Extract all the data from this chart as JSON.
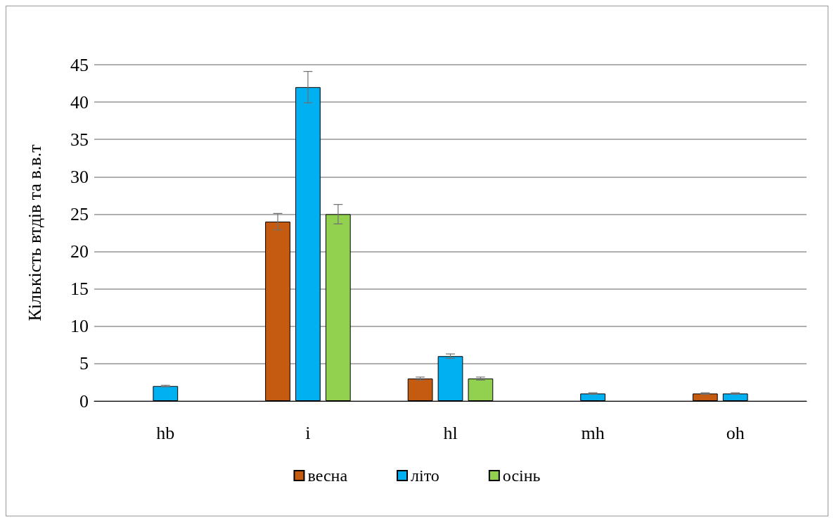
{
  "chart_data": {
    "type": "bar",
    "ylabel": "Кількість втдів та в.в.т",
    "categories": [
      "hb",
      "i",
      "hl",
      "mh",
      "oh"
    ],
    "series": [
      {
        "name": "весна",
        "color": "#c55a11",
        "values": [
          null,
          24,
          3,
          null,
          1
        ],
        "errors": [
          null,
          1.1,
          0.2,
          null,
          0.1
        ]
      },
      {
        "name": "літо",
        "color": "#00b0f0",
        "values": [
          2,
          42,
          6,
          1,
          1
        ],
        "errors": [
          0.1,
          2.1,
          0.3,
          0.1,
          0.1
        ]
      },
      {
        "name": "осінь",
        "color": "#92d050",
        "values": [
          null,
          25,
          3,
          null,
          null
        ],
        "errors": [
          null,
          1.3,
          0.2,
          null,
          null
        ]
      }
    ],
    "ylim": [
      0,
      45
    ],
    "yticks": [
      0,
      5,
      10,
      15,
      20,
      25,
      30,
      35,
      40,
      45
    ],
    "grid": "y",
    "legend": "bottom"
  }
}
